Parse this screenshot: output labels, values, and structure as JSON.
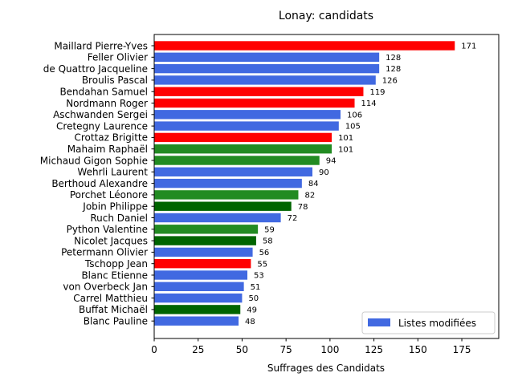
{
  "chart_data": {
    "type": "bar",
    "orientation": "horizontal",
    "title": "Lonay: candidats",
    "xlabel": "Suffrages des Candidats",
    "ylabel": "",
    "xlim": [
      0,
      196
    ],
    "xticks": [
      0,
      25,
      50,
      75,
      100,
      125,
      150,
      175
    ],
    "grid": false,
    "legend": {
      "placement": "lower right",
      "entries": [
        {
          "label": "Listes modifiées",
          "color": "#4169e1"
        }
      ]
    },
    "categories": [
      "Maillard Pierre-Yves",
      "Feller Olivier",
      "de Quattro Jacqueline",
      "Broulis Pascal",
      "Bendahan Samuel",
      "Nordmann Roger",
      "Aschwanden Sergei",
      "Cretegny Laurence",
      "Crottaz Brigitte",
      "Mahaim Raphaël",
      "Michaud Gigon Sophie",
      "Wehrli Laurent",
      "Berthoud Alexandre",
      "Porchet Léonore",
      "Jobin Philippe",
      "Ruch Daniel",
      "Python Valentine",
      "Nicolet Jacques",
      "Petermann Olivier",
      "Tschopp Jean",
      "Blanc Etienne",
      "von Overbeck Jan",
      "Carrel Matthieu",
      "Buffat Michaël",
      "Blanc Pauline"
    ],
    "values": [
      171,
      128,
      128,
      126,
      119,
      114,
      106,
      105,
      101,
      101,
      94,
      90,
      84,
      82,
      78,
      72,
      59,
      58,
      56,
      55,
      53,
      51,
      50,
      49,
      48
    ],
    "colors": [
      "#ff0000",
      "#4169e1",
      "#4169e1",
      "#4169e1",
      "#ff0000",
      "#ff0000",
      "#4169e1",
      "#4169e1",
      "#ff0000",
      "#228b22",
      "#228b22",
      "#4169e1",
      "#4169e1",
      "#228b22",
      "#006400",
      "#4169e1",
      "#228b22",
      "#006400",
      "#4169e1",
      "#ff0000",
      "#4169e1",
      "#4169e1",
      "#4169e1",
      "#006400",
      "#4169e1"
    ]
  }
}
